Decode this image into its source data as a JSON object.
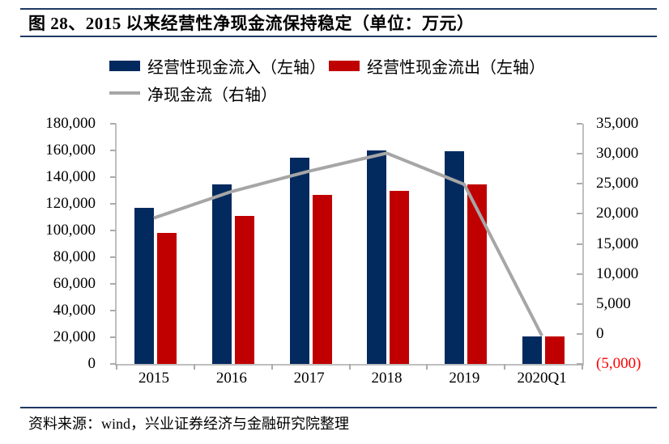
{
  "title": "图 28、2015 以来经营性净现金流保持稳定（单位：万元）",
  "source": "资料来源：wind，兴业证券经济与金融研究院整理",
  "colors": {
    "rule_navy": "#1f3864",
    "axis_line": "#bfbfbf",
    "tick_mark": "#ababab",
    "negative_label": "#ff0000",
    "text": "#000000"
  },
  "chart_data": {
    "type": "bar",
    "subtype": "dual-axis bar+line combo",
    "title": "2015 以来经营性净现金流保持稳定",
    "unit": "万元",
    "gridlines": false,
    "legend_position": "top",
    "categories": [
      "2015",
      "2016",
      "2017",
      "2018",
      "2019",
      "2020Q1"
    ],
    "series": [
      {
        "name": "经营性现金流入（左轴）",
        "type": "bar",
        "axis": "left",
        "color": "#032a5e",
        "values": [
          116800,
          134400,
          154500,
          160100,
          159400,
          20600
        ]
      },
      {
        "name": "经营性现金流出（左轴）",
        "type": "bar",
        "axis": "left",
        "color": "#c00000",
        "values": [
          98000,
          110700,
          126800,
          129700,
          134700,
          20800
        ]
      },
      {
        "name": "净现金流（右轴）",
        "type": "line",
        "axis": "right",
        "color": "#a6a6a6",
        "values": [
          19300,
          23700,
          27100,
          30100,
          24900,
          -300
        ]
      }
    ],
    "left_axis": {
      "min": 0,
      "max": 180000,
      "tick_step": 20000,
      "tick_labels": [
        "180,000",
        "160,000",
        "140,000",
        "120,000",
        "100,000",
        "80,000",
        "60,000",
        "40,000",
        "20,000",
        "0"
      ]
    },
    "right_axis": {
      "min": -5000,
      "max": 35000,
      "tick_step": 5000,
      "tick_labels": [
        "35,000",
        "30,000",
        "25,000",
        "20,000",
        "15,000",
        "10,000",
        "5,000",
        "0",
        "(5,000)"
      ],
      "negative_label_color": "#ff0000"
    }
  }
}
